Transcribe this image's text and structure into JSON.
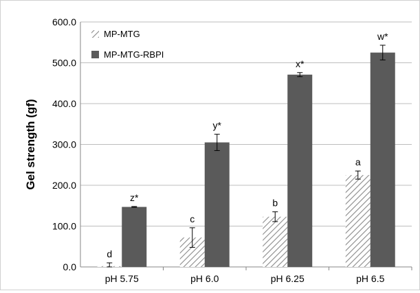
{
  "chart_data": {
    "type": "bar",
    "ylabel": "Gel strength (gf)",
    "xlabel": "",
    "ylim": [
      0,
      600
    ],
    "yticks": [
      0,
      100,
      200,
      300,
      400,
      500,
      600
    ],
    "ytick_labels": [
      "0.0",
      "100.0",
      "200.0",
      "300.0",
      "400.0",
      "500.0",
      "600.0"
    ],
    "grid": true,
    "legend_position": "top-left",
    "categories": [
      "pH 5.75",
      "pH 6.0",
      "pH 6.25",
      "pH 6.5"
    ],
    "series": [
      {
        "name": "MP-MTG",
        "fill": "hatched",
        "color": "#9a9a9a",
        "values": [
          2,
          72,
          123,
          225
        ],
        "errors": [
          8,
          24,
          12,
          10
        ],
        "labels": [
          "d",
          "c",
          "b",
          "a"
        ]
      },
      {
        "name": "MP-MTG-RBPI",
        "fill": "solid",
        "color": "#5a5a5a",
        "values": [
          147,
          305,
          471,
          525
        ],
        "errors": [
          1,
          20,
          5,
          18
        ],
        "labels": [
          "z*",
          "y*",
          "x*",
          "w*"
        ]
      }
    ]
  }
}
